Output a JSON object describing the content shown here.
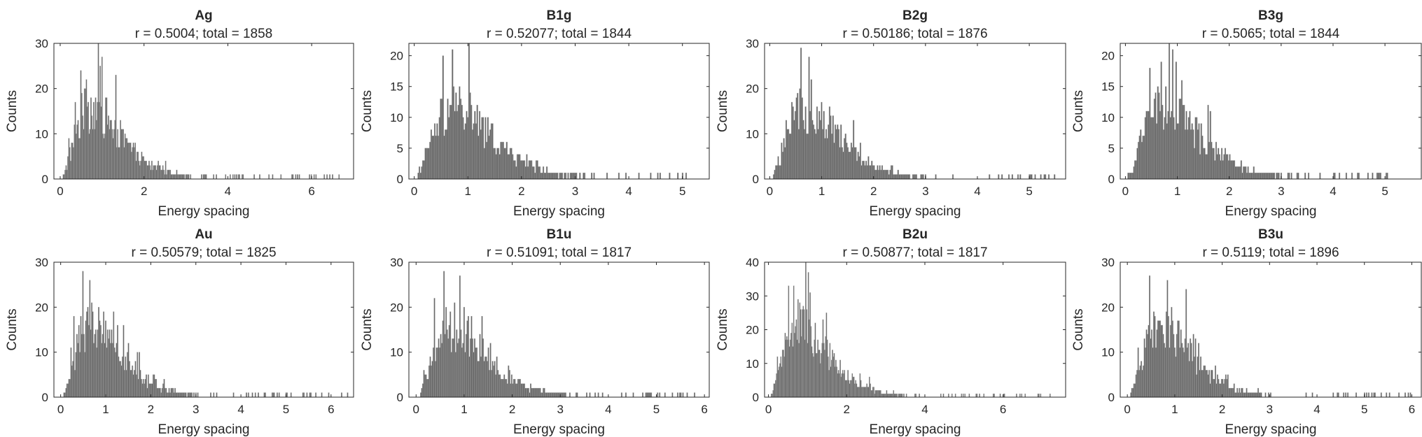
{
  "figure": {
    "bar_color": "#666666",
    "axis_color": "#262626",
    "background": "#ffffff"
  },
  "chart_data": [
    {
      "type": "bar",
      "title": "Ag",
      "subtitle": "r = 0.5004; total = 1858",
      "xlabel": "Energy spacing",
      "ylabel": "Counts",
      "xlim": [
        -0.15,
        7.0
      ],
      "ylim": [
        0,
        30
      ],
      "xticks": [
        0,
        2,
        4,
        6
      ],
      "yticks": [
        0,
        10,
        20,
        30
      ],
      "peak_x": 0.75,
      "tail_end": 4.2,
      "max_x": 6.8,
      "grid": false
    },
    {
      "type": "bar",
      "title": "B1g",
      "subtitle": "r = 0.52077; total = 1844",
      "xlabel": "Energy spacing",
      "ylabel": "Counts",
      "xlim": [
        -0.1,
        5.5
      ],
      "ylim": [
        0,
        22
      ],
      "xticks": [
        0,
        1,
        2,
        3,
        4,
        5
      ],
      "yticks": [
        0,
        5,
        10,
        15,
        20
      ],
      "peak_x": 0.75,
      "tail_end": 3.5,
      "max_x": 5.1,
      "grid": false
    },
    {
      "type": "bar",
      "title": "B2g",
      "subtitle": "r = 0.50186; total = 1876",
      "xlabel": "Energy spacing",
      "ylabel": "Counts",
      "xlim": [
        -0.1,
        5.7
      ],
      "ylim": [
        0,
        30
      ],
      "xticks": [
        0,
        1,
        2,
        3,
        4,
        5
      ],
      "yticks": [
        0,
        10,
        20,
        30
      ],
      "peak_x": 0.7,
      "tail_end": 4.2,
      "max_x": 5.5,
      "grid": false
    },
    {
      "type": "bar",
      "title": "B3g",
      "subtitle": "r = 0.5065; total = 1844",
      "xlabel": "Energy spacing",
      "ylabel": "Counts",
      "xlim": [
        -0.1,
        5.7
      ],
      "ylim": [
        0,
        22
      ],
      "xticks": [
        0,
        1,
        2,
        3,
        4,
        5
      ],
      "yticks": [
        0,
        5,
        10,
        15,
        20
      ],
      "peak_x": 0.75,
      "tail_end": 4.0,
      "max_x": 5.5,
      "grid": false
    },
    {
      "type": "bar",
      "title": "Au",
      "subtitle": "r = 0.50579; total = 1825",
      "xlabel": "Energy spacing",
      "ylabel": "Counts",
      "xlim": [
        -0.15,
        6.5
      ],
      "ylim": [
        0,
        30
      ],
      "xticks": [
        0,
        1,
        2,
        3,
        4,
        5,
        6
      ],
      "yticks": [
        0,
        10,
        20,
        30
      ],
      "peak_x": 0.7,
      "tail_end": 4.0,
      "max_x": 6.4,
      "grid": false
    },
    {
      "type": "bar",
      "title": "B1u",
      "subtitle": "r = 0.51091; total = 1817",
      "xlabel": "Energy spacing",
      "ylabel": "Counts",
      "xlim": [
        -0.15,
        6.1
      ],
      "ylim": [
        0,
        30
      ],
      "xticks": [
        0,
        1,
        2,
        3,
        4,
        5,
        6
      ],
      "yticks": [
        0,
        10,
        20,
        30
      ],
      "peak_x": 0.75,
      "tail_end": 4.0,
      "max_x": 5.9,
      "grid": false
    },
    {
      "type": "bar",
      "title": "B2u",
      "subtitle": "r = 0.50877; total = 1817",
      "xlabel": "Energy spacing",
      "ylabel": "Counts",
      "xlim": [
        -0.1,
        7.6
      ],
      "ylim": [
        0,
        40
      ],
      "xticks": [
        0,
        2,
        4,
        6
      ],
      "yticks": [
        0,
        10,
        20,
        30,
        40
      ],
      "peak_x": 0.8,
      "tail_end": 4.5,
      "max_x": 7.2,
      "grid": false
    },
    {
      "type": "bar",
      "title": "B3u",
      "subtitle": "r = 0.5119; total = 1896",
      "xlabel": "Energy spacing",
      "ylabel": "Counts",
      "xlim": [
        -0.15,
        6.2
      ],
      "ylim": [
        0,
        30
      ],
      "xticks": [
        0,
        1,
        2,
        3,
        4,
        5,
        6
      ],
      "yticks": [
        0,
        10,
        20,
        30
      ],
      "peak_x": 0.7,
      "tail_end": 4.5,
      "max_x": 6.0,
      "grid": false
    }
  ]
}
